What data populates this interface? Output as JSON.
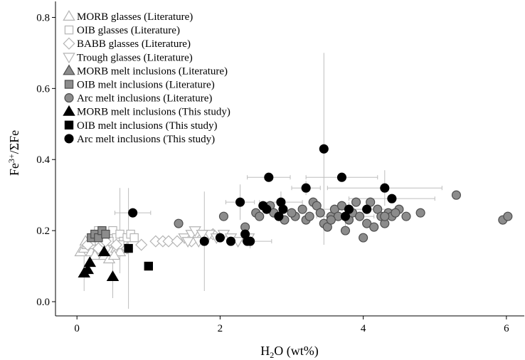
{
  "chart_data": {
    "type": "scatter",
    "xlabel": "H2O (wt%)",
    "ylabel": "Fe3+/ΣFe",
    "xlim": [
      -0.3,
      6.25
    ],
    "ylim": [
      -0.04,
      0.845
    ],
    "xticks": [
      0,
      2,
      4,
      6
    ],
    "xtick_labels": [
      "0",
      "2",
      "4",
      "6"
    ],
    "yticks": [
      0.0,
      0.2,
      0.4,
      0.6,
      0.8
    ],
    "ytick_labels": [
      "0.0",
      "0.2",
      "0.4",
      "0.6",
      "0.8"
    ],
    "grid": false,
    "legend_position": "top-left",
    "series": [
      {
        "name": "MORB glasses (Literature)",
        "marker": "triangle-up",
        "fill": "#ffffff",
        "stroke": "#b4b4b4",
        "points": [
          [
            0.05,
            0.14
          ],
          [
            0.1,
            0.15
          ],
          [
            0.15,
            0.16
          ],
          [
            0.2,
            0.14
          ],
          [
            0.22,
            0.16
          ],
          [
            0.3,
            0.15
          ],
          [
            0.35,
            0.14
          ],
          [
            0.42,
            0.15
          ],
          [
            0.48,
            0.14
          ],
          [
            0.55,
            0.15
          ],
          [
            0.6,
            0.14
          ],
          [
            0.25,
            0.13
          ],
          [
            0.38,
            0.13
          ],
          [
            0.12,
            0.17
          ],
          [
            0.45,
            0.12
          ],
          [
            0.52,
            0.13
          ]
        ]
      },
      {
        "name": "OIB glasses (Literature)",
        "marker": "square",
        "fill": "#ffffff",
        "stroke": "#b4b4b4",
        "points": [
          [
            0.3,
            0.2
          ],
          [
            0.4,
            0.19
          ],
          [
            0.5,
            0.2
          ],
          [
            0.55,
            0.18
          ],
          [
            0.6,
            0.19
          ],
          [
            0.65,
            0.17
          ],
          [
            0.7,
            0.18
          ],
          [
            0.75,
            0.19
          ],
          [
            0.8,
            0.18
          ],
          [
            0.45,
            0.17
          ],
          [
            0.35,
            0.18
          ],
          [
            0.25,
            0.19
          ],
          [
            0.6,
            0.16
          ],
          [
            0.2,
            0.17
          ]
        ]
      },
      {
        "name": "BABB glasses (Literature)",
        "marker": "diamond",
        "fill": "#ffffff",
        "stroke": "#b4b4b4",
        "points": [
          [
            0.3,
            0.15
          ],
          [
            0.4,
            0.17
          ],
          [
            0.55,
            0.16
          ],
          [
            0.7,
            0.15
          ],
          [
            0.9,
            0.16
          ],
          [
            1.1,
            0.17
          ],
          [
            1.2,
            0.17
          ],
          [
            1.28,
            0.17
          ],
          [
            1.4,
            0.17
          ],
          [
            1.6,
            0.17
          ],
          [
            1.75,
            0.18
          ],
          [
            1.9,
            0.19
          ],
          [
            0.15,
            0.16
          ]
        ]
      },
      {
        "name": "Trough glasses (Literature)",
        "marker": "triangle-down",
        "fill": "#ffffff",
        "stroke": "#b4b4b4",
        "points": [
          [
            1.5,
            0.18
          ],
          [
            1.6,
            0.19
          ],
          [
            1.65,
            0.2
          ],
          [
            1.7,
            0.17
          ],
          [
            1.8,
            0.18
          ],
          [
            1.85,
            0.19
          ],
          [
            1.95,
            0.18
          ],
          [
            2.05,
            0.19
          ],
          [
            2.15,
            0.18
          ],
          [
            2.25,
            0.17
          ],
          [
            2.4,
            0.18
          ],
          [
            1.55,
            0.17
          ],
          [
            1.75,
            0.19
          ]
        ]
      },
      {
        "name": "MORB melt inclusions (Literature)",
        "marker": "triangle-up",
        "fill": "#8c8c8c",
        "stroke": "#4d4d4d",
        "points": []
      },
      {
        "name": "OIB melt inclusions (Literature)",
        "marker": "square",
        "fill": "#8c8c8c",
        "stroke": "#4d4d4d",
        "points": [
          [
            0.2,
            0.18
          ],
          [
            0.25,
            0.19
          ],
          [
            0.3,
            0.18
          ],
          [
            0.35,
            0.2
          ],
          [
            0.4,
            0.19
          ]
        ]
      },
      {
        "name": "Arc melt inclusions (Literature)",
        "marker": "circle",
        "fill": "#8c8c8c",
        "stroke": "#4d4d4d",
        "points": [
          [
            1.42,
            0.22
          ],
          [
            2.05,
            0.24
          ],
          [
            2.35,
            0.21
          ],
          [
            2.5,
            0.25
          ],
          [
            2.55,
            0.24
          ],
          [
            2.7,
            0.27
          ],
          [
            2.75,
            0.25
          ],
          [
            2.9,
            0.23
          ],
          [
            3.05,
            0.24
          ],
          [
            3.2,
            0.23
          ],
          [
            3.25,
            0.24
          ],
          [
            3.3,
            0.28
          ],
          [
            3.35,
            0.27
          ],
          [
            3.4,
            0.25
          ],
          [
            3.45,
            0.22
          ],
          [
            3.5,
            0.21
          ],
          [
            3.55,
            0.24
          ],
          [
            3.6,
            0.26
          ],
          [
            3.65,
            0.24
          ],
          [
            3.7,
            0.27
          ],
          [
            3.75,
            0.2
          ],
          [
            3.8,
            0.23
          ],
          [
            3.85,
            0.25
          ],
          [
            3.9,
            0.28
          ],
          [
            3.95,
            0.24
          ],
          [
            4.0,
            0.18
          ],
          [
            4.05,
            0.22
          ],
          [
            4.1,
            0.28
          ],
          [
            4.15,
            0.21
          ],
          [
            4.2,
            0.26
          ],
          [
            4.25,
            0.24
          ],
          [
            4.3,
            0.22
          ],
          [
            4.35,
            0.25
          ],
          [
            4.4,
            0.24
          ],
          [
            4.5,
            0.26
          ],
          [
            4.8,
            0.25
          ],
          [
            5.3,
            0.3
          ],
          [
            5.95,
            0.23
          ],
          [
            6.02,
            0.24
          ],
          [
            3.0,
            0.25
          ],
          [
            3.15,
            0.26
          ],
          [
            4.3,
            0.24
          ],
          [
            3.55,
            0.23
          ],
          [
            4.45,
            0.25
          ],
          [
            4.6,
            0.24
          ]
        ]
      },
      {
        "name": "MORB melt inclusions (This study)",
        "marker": "triangle-up",
        "fill": "#000000",
        "stroke": "#000000",
        "points": [
          [
            0.1,
            0.08
          ],
          [
            0.15,
            0.09
          ],
          [
            0.18,
            0.11
          ],
          [
            0.38,
            0.14
          ],
          [
            0.5,
            0.07
          ]
        ]
      },
      {
        "name": "OIB melt inclusions (This study)",
        "marker": "square",
        "fill": "#000000",
        "stroke": "#000000",
        "points": [
          [
            0.72,
            0.15
          ],
          [
            1.0,
            0.1
          ]
        ]
      },
      {
        "name": "Arc melt inclusions (This study)",
        "marker": "circle",
        "fill": "#000000",
        "stroke": "#000000",
        "points": [
          [
            0.78,
            0.25
          ],
          [
            1.78,
            0.17
          ],
          [
            2.0,
            0.18
          ],
          [
            2.15,
            0.17
          ],
          [
            2.28,
            0.28
          ],
          [
            2.35,
            0.19
          ],
          [
            2.38,
            0.17
          ],
          [
            2.42,
            0.17
          ],
          [
            2.6,
            0.27
          ],
          [
            2.65,
            0.26
          ],
          [
            2.68,
            0.35
          ],
          [
            2.85,
            0.28
          ],
          [
            2.88,
            0.26
          ],
          [
            2.82,
            0.24
          ],
          [
            3.2,
            0.32
          ],
          [
            3.45,
            0.43
          ],
          [
            3.7,
            0.35
          ],
          [
            3.75,
            0.24
          ],
          [
            3.8,
            0.26
          ],
          [
            4.05,
            0.26
          ],
          [
            4.3,
            0.32
          ],
          [
            4.4,
            0.29
          ]
        ]
      }
    ],
    "error_bars": [
      {
        "x": 0.78,
        "y": 0.25,
        "xerr": 0.25,
        "yerr": 0
      },
      {
        "x": 0.72,
        "y": 0.15,
        "xerr": 0,
        "yerr": 0.17
      },
      {
        "x": 0.6,
        "y": 0.2,
        "xerr": 0,
        "yerr": 0.12
      },
      {
        "x": 0.5,
        "y": 0.07,
        "xerr": 0,
        "yerr": 0.06
      },
      {
        "x": 0.1,
        "y": 0.08,
        "xerr": 0,
        "yerr": 0.05
      },
      {
        "x": 1.78,
        "y": 0.17,
        "xerr": 0,
        "yerr": 0.14
      },
      {
        "x": 2.28,
        "y": 0.28,
        "xerr": 0.2,
        "yerr": 0.05
      },
      {
        "x": 2.68,
        "y": 0.35,
        "xerr": 0.3,
        "yerr": 0
      },
      {
        "x": 2.85,
        "y": 0.28,
        "xerr": 0.3,
        "yerr": 0.03
      },
      {
        "x": 3.2,
        "y": 0.32,
        "xerr": 0.2,
        "yerr": 0.02
      },
      {
        "x": 3.45,
        "y": 0.43,
        "xerr": 0,
        "yerr": 0.27
      },
      {
        "x": 3.7,
        "y": 0.35,
        "xerr": 0.5,
        "yerr": 0
      },
      {
        "x": 4.3,
        "y": 0.32,
        "xerr": 0.8,
        "yerr": 0.05
      },
      {
        "x": 4.4,
        "y": 0.29,
        "xerr": 0.6,
        "yerr": 0
      },
      {
        "x": 4.05,
        "y": 0.26,
        "xerr": 0.5,
        "yerr": 0
      },
      {
        "x": 3.75,
        "y": 0.24,
        "xerr": 0.4,
        "yerr": 0.03
      },
      {
        "x": 3.8,
        "y": 0.26,
        "xerr": 0.4,
        "yerr": 0.02
      },
      {
        "x": 2.42,
        "y": 0.17,
        "xerr": 0.3,
        "yerr": 0.02
      }
    ]
  }
}
